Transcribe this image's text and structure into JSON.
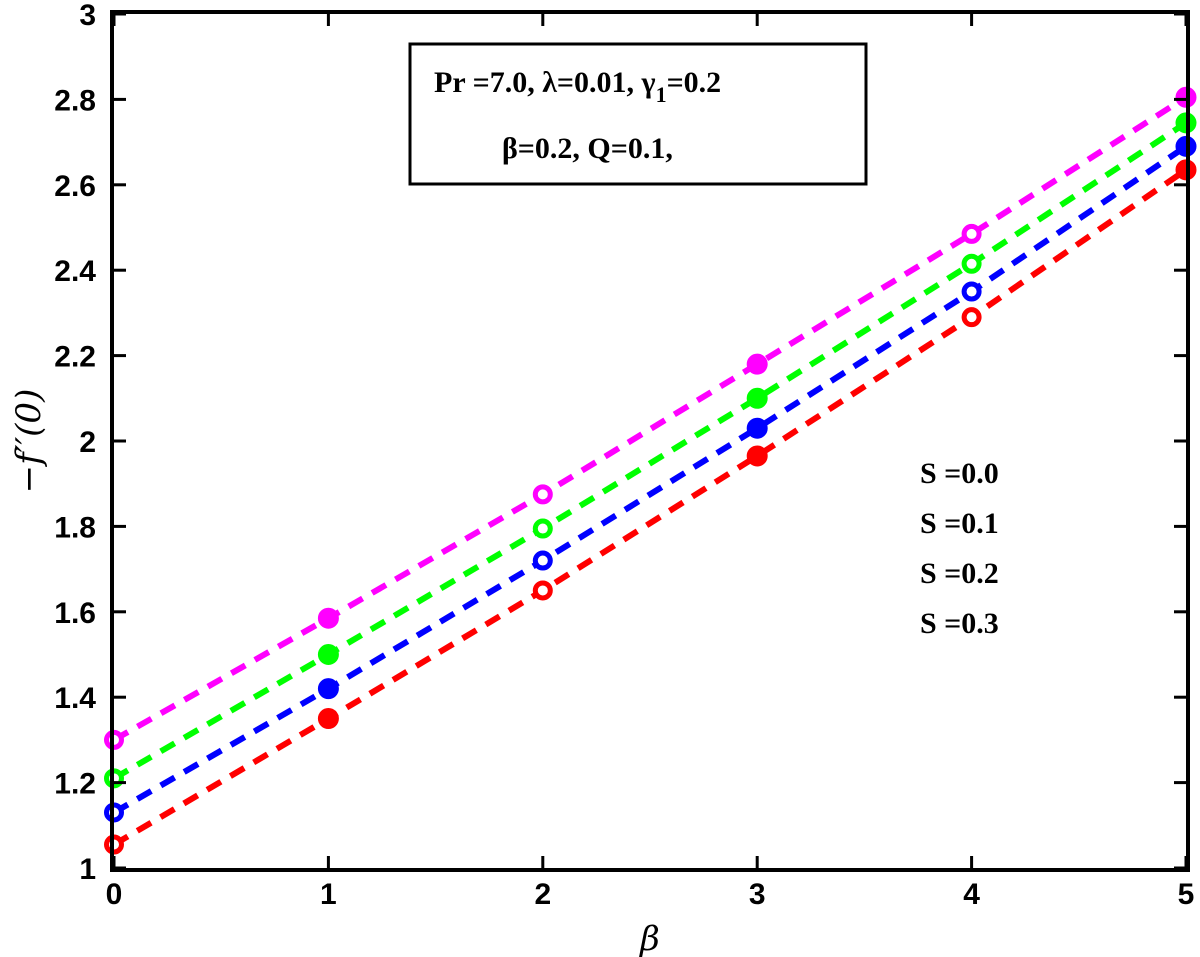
{
  "chart_data": {
    "type": "line",
    "xlabel": "β",
    "ylabel": "−f′′(0)",
    "xlim": [
      0,
      5
    ],
    "ylim": [
      1,
      3
    ],
    "xticks": [
      "0",
      "1",
      "2",
      "3",
      "4",
      "5"
    ],
    "yticks": [
      "1",
      "1.2",
      "1.4",
      "1.6",
      "1.8",
      "2",
      "2.2",
      "2.4",
      "2.6",
      "2.8",
      "3"
    ],
    "x": [
      0,
      1,
      2,
      3,
      4,
      5
    ],
    "grid": false,
    "line_style": "dashed",
    "marker_pattern": [
      "open",
      "filled",
      "open",
      "filled",
      "open",
      "filled"
    ],
    "series": [
      {
        "name": "S =0.0",
        "color": "#ff00ff",
        "values": [
          1.3,
          1.585,
          1.875,
          2.18,
          2.485,
          2.805
        ]
      },
      {
        "name": "S =0.1",
        "color": "#00ff00",
        "values": [
          1.21,
          1.5,
          1.795,
          2.1,
          2.415,
          2.745
        ]
      },
      {
        "name": "S =0.2",
        "color": "#0000ff",
        "values": [
          1.13,
          1.42,
          1.72,
          2.03,
          2.35,
          2.69
        ]
      },
      {
        "name": "S =0.3",
        "color": "#ff0000",
        "values": [
          1.055,
          1.35,
          1.65,
          1.965,
          2.29,
          2.635
        ]
      }
    ],
    "annotation_lines": [
      "Pr =7.0, λ=0.01, γ",
      "1",
      "=0.2",
      "β=0.2, Q=0.1,"
    ],
    "legend_position": "right"
  }
}
